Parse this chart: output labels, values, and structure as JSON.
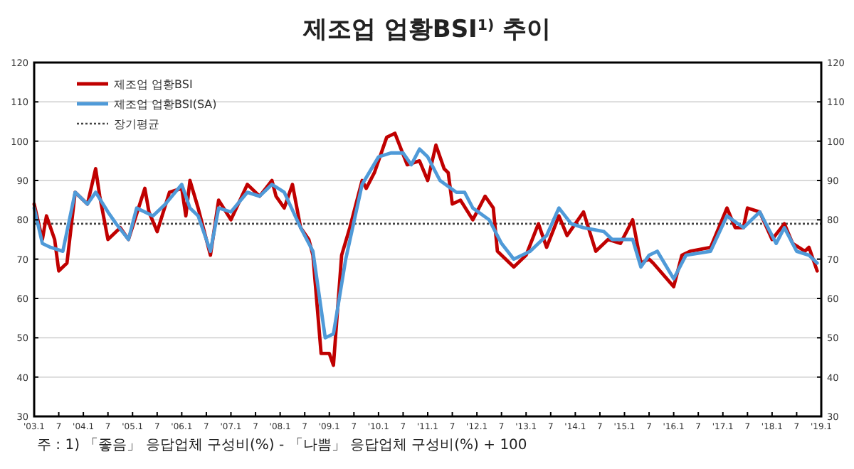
{
  "chart_data": {
    "type": "line",
    "title": "제조업 업황BSI$^{1)}$ 추이",
    "xlim": [
      "2003-01",
      "2019-01"
    ],
    "xticks": [
      {
        "value": "2003-01",
        "label": "'03.1"
      },
      {
        "value": "2003-07",
        "label": "7"
      },
      {
        "value": "2004-01",
        "label": "'04.1"
      },
      {
        "value": "2004-07",
        "label": "7"
      },
      {
        "value": "2005-01",
        "label": "'05.1"
      },
      {
        "value": "2005-07",
        "label": "7"
      },
      {
        "value": "2006-01",
        "label": "'06.1"
      },
      {
        "value": "2006-07",
        "label": "7"
      },
      {
        "value": "2007-01",
        "label": "'07.1"
      },
      {
        "value": "2007-07",
        "label": "7"
      },
      {
        "value": "2008-01",
        "label": "'08.1"
      },
      {
        "value": "2008-07",
        "label": "7"
      },
      {
        "value": "2009-01",
        "label": "'09.1"
      },
      {
        "value": "2009-07",
        "label": "7"
      },
      {
        "value": "2010-01",
        "label": "'10.1"
      },
      {
        "value": "2010-07",
        "label": "7"
      },
      {
        "value": "2011-01",
        "label": "'11.1"
      },
      {
        "value": "2011-07",
        "label": "7"
      },
      {
        "value": "2012-01",
        "label": "'12.1"
      },
      {
        "value": "2012-07",
        "label": "7"
      },
      {
        "value": "2013-01",
        "label": "'13.1"
      },
      {
        "value": "2013-07",
        "label": "7"
      },
      {
        "value": "2014-01",
        "label": "'14.1"
      },
      {
        "value": "2014-07",
        "label": "7"
      },
      {
        "value": "2015-01",
        "label": "'15.1"
      },
      {
        "value": "2015-07",
        "label": "7"
      },
      {
        "value": "2016-01",
        "label": "'16.1"
      },
      {
        "value": "2016-07",
        "label": "7"
      },
      {
        "value": "2017-01",
        "label": "'17.1"
      },
      {
        "value": "2017-07",
        "label": "7"
      },
      {
        "value": "2018-01",
        "label": "'18.1"
      },
      {
        "value": "2018-07",
        "label": "7"
      },
      {
        "value": "2019-01",
        "label": "'19.1"
      }
    ],
    "ylim": [
      30,
      120
    ],
    "yticks": [
      30,
      40,
      50,
      60,
      70,
      80,
      90,
      100,
      110,
      120
    ],
    "y2lim": [
      30,
      120
    ],
    "y2ticks": [
      30,
      40,
      50,
      60,
      70,
      80,
      90,
      100,
      110,
      120
    ],
    "grid": "y",
    "legend": "top left",
    "line_style": "solid",
    "marker": "none",
    "series": [
      {
        "name": "제조업 업황BSI",
        "color": "#c00000",
        "x": [
          "2003-01",
          "2003-03",
          "2003-04",
          "2003-06",
          "2003-07",
          "2003-09",
          "2003-11",
          "2004-02",
          "2004-04",
          "2004-05",
          "2004-07",
          "2004-10",
          "2004-12",
          "2005-04",
          "2005-05",
          "2005-07",
          "2005-10",
          "2006-01",
          "2006-02",
          "2006-03",
          "2006-05",
          "2006-08",
          "2006-10",
          "2007-01",
          "2007-05",
          "2007-08",
          "2007-11",
          "2007-12",
          "2008-02",
          "2008-04",
          "2008-06",
          "2008-08",
          "2008-09",
          "2008-11",
          "2009-01",
          "2009-02",
          "2009-04",
          "2009-06",
          "2009-09",
          "2009-10",
          "2009-12",
          "2010-03",
          "2010-05",
          "2010-08",
          "2010-11",
          "2011-01",
          "2011-03",
          "2011-05",
          "2011-06",
          "2011-07",
          "2011-09",
          "2011-12",
          "2012-03",
          "2012-05",
          "2012-06",
          "2012-10",
          "2013-01",
          "2013-04",
          "2013-06",
          "2013-09",
          "2013-11",
          "2014-03",
          "2014-06",
          "2014-09",
          "2014-12",
          "2015-03",
          "2015-05",
          "2015-07",
          "2015-08",
          "2016-01",
          "2016-03",
          "2016-05",
          "2016-10",
          "2017-02",
          "2017-04",
          "2017-06",
          "2017-07",
          "2017-10",
          "2018-01",
          "2018-04",
          "2018-06",
          "2018-09",
          "2018-10",
          "2018-12"
        ],
        "values": [
          84,
          75,
          81,
          75,
          67,
          69,
          87,
          84,
          93,
          86,
          75,
          78,
          75,
          88,
          82,
          77,
          87,
          88,
          81,
          90,
          83,
          71,
          85,
          80,
          89,
          86,
          90,
          86,
          83,
          89,
          78,
          75,
          71,
          46,
          46,
          43,
          71,
          78,
          90,
          88,
          92,
          101,
          102,
          94,
          95,
          90,
          99,
          93,
          92,
          84,
          85,
          80,
          86,
          83,
          72,
          68,
          71,
          79,
          73,
          81,
          76,
          82,
          72,
          75,
          74,
          80,
          69,
          70,
          69,
          63,
          71,
          72,
          73,
          83,
          78,
          78,
          83,
          82,
          75,
          79,
          74,
          72,
          73,
          67
        ]
      },
      {
        "name": "제조업 업황BSI(SA)",
        "color": "#4f9ad8",
        "x": [
          "2003-01",
          "2003-03",
          "2003-05",
          "2003-08",
          "2003-11",
          "2004-02",
          "2004-04",
          "2004-07",
          "2004-09",
          "2004-12",
          "2005-02",
          "2005-06",
          "2005-09",
          "2006-01",
          "2006-03",
          "2006-05",
          "2006-08",
          "2006-10",
          "2007-01",
          "2007-05",
          "2007-08",
          "2007-11",
          "2008-02",
          "2008-06",
          "2008-09",
          "2008-12",
          "2009-02",
          "2009-05",
          "2009-09",
          "2010-01",
          "2010-04",
          "2010-07",
          "2010-09",
          "2010-11",
          "2011-01",
          "2011-04",
          "2011-08",
          "2011-10",
          "2011-12",
          "2012-04",
          "2012-07",
          "2012-10",
          "2013-02",
          "2013-06",
          "2013-09",
          "2013-12",
          "2014-03",
          "2014-08",
          "2014-10",
          "2015-03",
          "2015-05",
          "2015-07",
          "2015-09",
          "2016-01",
          "2016-04",
          "2016-10",
          "2017-02",
          "2017-06",
          "2017-10",
          "2018-02",
          "2018-04",
          "2018-07",
          "2018-10",
          "2018-12"
        ],
        "values": [
          83,
          74,
          73,
          72,
          87,
          84,
          87,
          82,
          79,
          75,
          83,
          81,
          84,
          89,
          83,
          81,
          72,
          83,
          82,
          87,
          86,
          89,
          87,
          78,
          72,
          50,
          51,
          70,
          89,
          96,
          97,
          97,
          94,
          98,
          96,
          90,
          87,
          87,
          83,
          80,
          74,
          70,
          72,
          76,
          83,
          79,
          78,
          77,
          75,
          75,
          68,
          71,
          72,
          65,
          71,
          72,
          81,
          78,
          82,
          74,
          78,
          72,
          71,
          69
        ]
      }
    ],
    "ref_lines": [
      {
        "axis": "y",
        "value": 79,
        "label": "장기평균",
        "color": "#444444",
        "line_style": "dotted"
      }
    ],
    "annotations": [
      "주 : 1) 「좋음」 응답업체 구성비(%) - 「나쁨」 응답업체 구성비(%) + 100"
    ]
  }
}
